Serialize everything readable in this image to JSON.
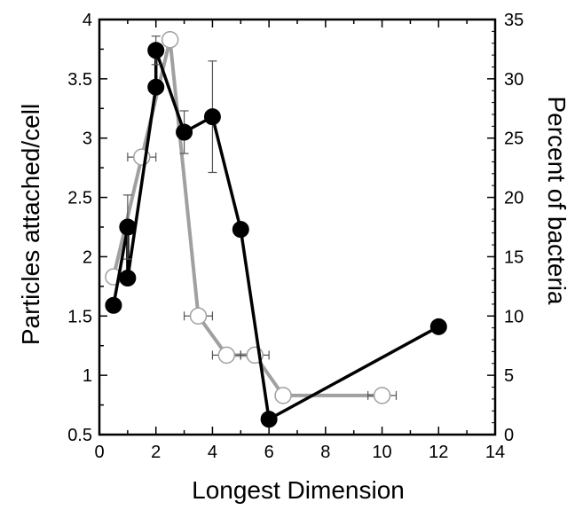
{
  "chart_data": {
    "type": "line",
    "xlabel": "Longest Dimension",
    "ylabel_left": "Particles attached/cell",
    "ylabel_right": "Percent of bacteria",
    "xlim": [
      0,
      14
    ],
    "ylim_left": [
      0.5,
      4
    ],
    "ylim_right": [
      0,
      35
    ],
    "x_ticks": [
      "0",
      "2",
      "4",
      "6",
      "8",
      "10",
      "12",
      "14"
    ],
    "y_left_ticks": [
      "0.5",
      "1",
      "1.5",
      "2",
      "2.5",
      "3",
      "3.5",
      "4"
    ],
    "y_right_ticks": [
      "0",
      "5",
      "10",
      "15",
      "20",
      "25",
      "30",
      "35"
    ],
    "grid": false,
    "colors": {
      "black_series": "#000000",
      "gray_series": "#a0a0a0",
      "error_bars": "#555555"
    },
    "series": [
      {
        "axis": "left",
        "marker": "filled-circle",
        "points": [
          {
            "x": 0.5,
            "y": 1.59
          },
          {
            "x": 1.0,
            "y": 2.25,
            "err": 0.27
          },
          {
            "x": 1.0,
            "y": 1.82
          },
          {
            "x": 2.0,
            "y": 3.43
          },
          {
            "x": 2.0,
            "y": 3.74,
            "err": 0.12
          },
          {
            "x": 3.0,
            "y": 3.05,
            "err": 0.18
          },
          {
            "x": 4.0,
            "y": 3.18,
            "err": 0.47
          },
          {
            "x": 5.0,
            "y": 2.23
          },
          {
            "x": 6.0,
            "y": 0.63
          },
          {
            "x": 12.0,
            "y": 1.41
          }
        ]
      },
      {
        "axis": "right",
        "marker": "open-circle",
        "points": [
          {
            "x": 0.5,
            "y": 13.3
          },
          {
            "x": 1.5,
            "y": 23.4,
            "xerr": 0.5
          },
          {
            "x": 2.5,
            "y": 33.3
          },
          {
            "x": 3.5,
            "y": 10.0,
            "xerr": 0.5
          },
          {
            "x": 4.5,
            "y": 6.7,
            "xerr": 0.5
          },
          {
            "x": 5.5,
            "y": 6.7,
            "xerr": 0.5
          },
          {
            "x": 6.5,
            "y": 3.3
          },
          {
            "x": 10.0,
            "y": 3.3,
            "xerr": 0.5
          }
        ]
      }
    ]
  }
}
